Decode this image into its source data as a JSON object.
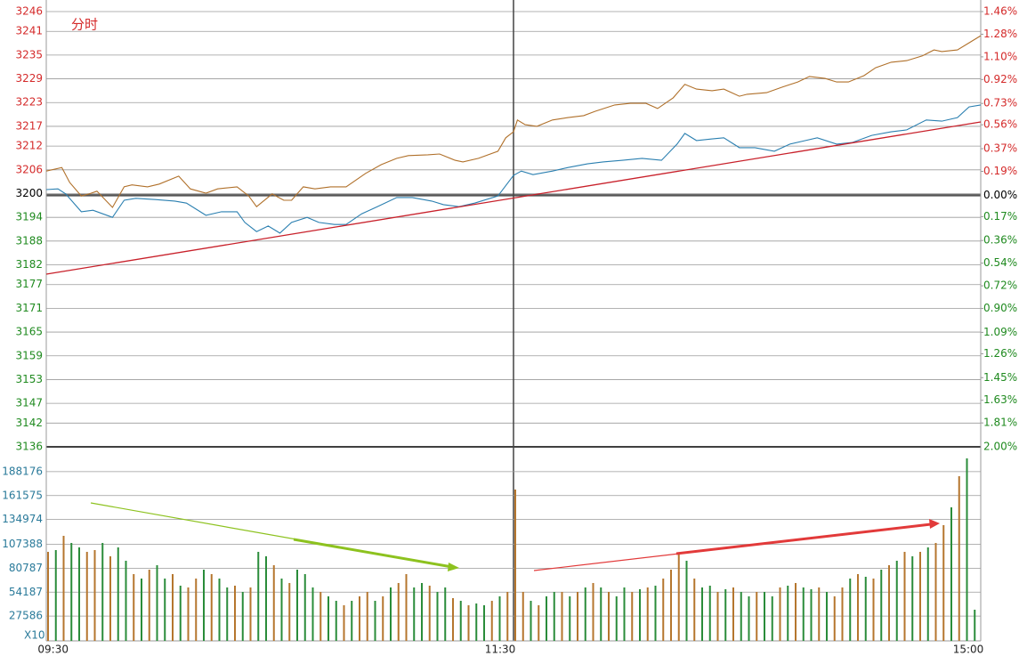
{
  "chart_data": [
    {
      "type": "line",
      "title": "分时",
      "xlim": [
        0,
        240
      ],
      "xticks": [
        {
          "value": 0,
          "label": "09:30"
        },
        {
          "value": 120,
          "label": "11:30"
        },
        {
          "value": 240,
          "label": "15:00"
        }
      ],
      "ylim": [
        3136,
        3246
      ],
      "yticks": [
        3246,
        3241,
        3235,
        3229,
        3223,
        3217,
        3212,
        3206,
        3200,
        3194,
        3188,
        3182,
        3177,
        3171,
        3165,
        3159,
        3153,
        3147,
        3142,
        3136
      ],
      "y2lim": [
        -2.0,
        1.46
      ],
      "y2ticks": [
        {
          "value": 1.46,
          "label": "1.46%"
        },
        {
          "value": 1.28,
          "label": "1.28%"
        },
        {
          "value": 1.1,
          "label": "1.10%"
        },
        {
          "value": 0.92,
          "label": "0.92%"
        },
        {
          "value": 0.73,
          "label": "0.73%"
        },
        {
          "value": 0.56,
          "label": "0.56%"
        },
        {
          "value": 0.37,
          "label": "0.37%"
        },
        {
          "value": 0.19,
          "label": "0.19%"
        },
        {
          "value": 0,
          "label": "0.00%"
        },
        {
          "value": -0.17,
          "label": "0.17%"
        },
        {
          "value": -0.36,
          "label": "0.36%"
        },
        {
          "value": -0.54,
          "label": "0.54%"
        },
        {
          "value": -0.72,
          "label": "0.72%"
        },
        {
          "value": -0.9,
          "label": "0.90%"
        },
        {
          "value": -1.09,
          "label": "1.09%"
        },
        {
          "value": -1.26,
          "label": "1.26%"
        },
        {
          "value": -1.45,
          "label": "1.45%"
        },
        {
          "value": -1.63,
          "label": "1.63%"
        },
        {
          "value": -1.81,
          "label": "1.81%"
        },
        {
          "value": -2.0,
          "label": "2.00%"
        }
      ],
      "up_color": "#d42a2a",
      "down_color": "#1f8a1f",
      "flat_color": "#000000",
      "series": [
        {
          "color": "#b0702a",
          "x": [
            0,
            4,
            6,
            9,
            11,
            13,
            17,
            20,
            22,
            26,
            29,
            34,
            37,
            41,
            44,
            49,
            52,
            54,
            58,
            61,
            63,
            66,
            69,
            73,
            77,
            82,
            86,
            90,
            93,
            98,
            101,
            105,
            107,
            111,
            116,
            118,
            120,
            121,
            123,
            126,
            130,
            134,
            138,
            141,
            146,
            150,
            154,
            157,
            161,
            164,
            167,
            171,
            174,
            178,
            180,
            185,
            189,
            193,
            196,
            200,
            203,
            206,
            210,
            213,
            217,
            221,
            225,
            228,
            230,
            234,
            237,
            240
          ],
          "values": [
            3205.7,
            3206.6,
            3202.8,
            3199.4,
            3199.9,
            3200.6,
            3196.5,
            3201.7,
            3202.2,
            3201.7,
            3202.4,
            3204.4,
            3201.2,
            3200.1,
            3201.2,
            3201.7,
            3199.4,
            3196.7,
            3199.9,
            3198.3,
            3198.3,
            3201.7,
            3201.2,
            3201.7,
            3201.7,
            3205.1,
            3207.3,
            3208.9,
            3209.6,
            3209.8,
            3210.0,
            3208.4,
            3208.0,
            3208.9,
            3210.7,
            3214.1,
            3215.6,
            3218.6,
            3217.4,
            3217.0,
            3218.6,
            3219.2,
            3219.7,
            3220.8,
            3222.4,
            3222.8,
            3222.8,
            3221.5,
            3224.2,
            3227.6,
            3226.4,
            3226.0,
            3226.4,
            3224.6,
            3225.1,
            3225.5,
            3226.9,
            3228.2,
            3229.6,
            3229.1,
            3228.2,
            3228.2,
            3229.8,
            3231.8,
            3233.2,
            3233.6,
            3234.8,
            3236.3,
            3235.9,
            3236.3,
            3238.1,
            3239.9
          ]
        },
        {
          "color": "#2a7fb0",
          "x": [
            0,
            3,
            5,
            9,
            12,
            17,
            20,
            23,
            28,
            33,
            36,
            41,
            45,
            49,
            51,
            54,
            57,
            60,
            63,
            67,
            70,
            74,
            77,
            81,
            85,
            90,
            94,
            99,
            102,
            106,
            110,
            116,
            120,
            122,
            125,
            130,
            134,
            139,
            143,
            148,
            153,
            158,
            162,
            164,
            167,
            171,
            174,
            178,
            182,
            187,
            191,
            195,
            198,
            203,
            207,
            212,
            217,
            221,
            226,
            230,
            234,
            237,
            240
          ],
          "values": [
            3201.0,
            3201.2,
            3199.9,
            3195.4,
            3195.8,
            3194.0,
            3198.3,
            3198.8,
            3198.5,
            3198.1,
            3197.6,
            3194.5,
            3195.4,
            3195.4,
            3192.7,
            3190.4,
            3191.8,
            3190.0,
            3192.7,
            3194.0,
            3192.7,
            3192.2,
            3192.2,
            3194.9,
            3196.7,
            3199.0,
            3199.0,
            3198.1,
            3197.2,
            3196.7,
            3197.6,
            3199.4,
            3204.6,
            3205.7,
            3204.8,
            3205.7,
            3206.6,
            3207.5,
            3208.0,
            3208.4,
            3208.9,
            3208.4,
            3212.5,
            3215.2,
            3213.4,
            3213.8,
            3214.1,
            3211.6,
            3211.6,
            3210.7,
            3212.5,
            3213.4,
            3214.1,
            3212.5,
            3212.9,
            3214.7,
            3215.6,
            3216.1,
            3218.6,
            3218.3,
            3219.2,
            3221.9,
            3222.4
          ]
        }
      ]
    },
    {
      "type": "bar",
      "xlim": [
        0,
        240
      ],
      "ylim": [
        0,
        215800
      ],
      "yticks": [
        188176,
        161575,
        134974,
        107388,
        80787,
        54187,
        27586
      ],
      "unit_label": "X10",
      "x": [
        0,
        2,
        4,
        6,
        8,
        10,
        12,
        14,
        16,
        18,
        20,
        22,
        24,
        26,
        28,
        30,
        32,
        34,
        36,
        38,
        40,
        42,
        44,
        46,
        48,
        50,
        52,
        54,
        56,
        58,
        60,
        62,
        64,
        66,
        68,
        70,
        72,
        74,
        76,
        78,
        80,
        82,
        84,
        86,
        88,
        90,
        92,
        94,
        96,
        98,
        100,
        102,
        104,
        106,
        108,
        110,
        112,
        114,
        116,
        118,
        120,
        122,
        124,
        126,
        128,
        130,
        132,
        134,
        136,
        138,
        140,
        142,
        144,
        146,
        148,
        150,
        152,
        154,
        156,
        158,
        160,
        162,
        164,
        166,
        168,
        170,
        172,
        174,
        176,
        178,
        180,
        182,
        184,
        186,
        188,
        190,
        192,
        194,
        196,
        198,
        200,
        202,
        204,
        206,
        208,
        210,
        212,
        214,
        216,
        218,
        220,
        222,
        224,
        226,
        228,
        230,
        232,
        234,
        236,
        238
      ],
      "values": [
        99000,
        100980,
        116820,
        108900,
        103950,
        99000,
        100980,
        108900,
        94050,
        103950,
        89100,
        74250,
        69300,
        79200,
        84150,
        69300,
        74250,
        61380,
        59400,
        69300,
        79200,
        74250,
        69300,
        59400,
        61380,
        54450,
        59400,
        99000,
        94050,
        84150,
        69300,
        64350,
        79200,
        74250,
        59400,
        54450,
        49500,
        44550,
        39600,
        44550,
        49500,
        54450,
        44550,
        49500,
        59400,
        64350,
        74250,
        59400,
        64350,
        61380,
        54450,
        59400,
        47520,
        44550,
        39600,
        41580,
        39600,
        44550,
        49500,
        54450,
        168300,
        54450,
        44550,
        39600,
        49500,
        54450,
        54450,
        49500,
        54450,
        59400,
        64350,
        59400,
        54450,
        49500,
        59400,
        54450,
        57420,
        59400,
        61380,
        69300,
        79200,
        97020,
        89100,
        69300,
        59400,
        61380,
        54450,
        57420,
        59400,
        54450,
        49500,
        54450,
        54450,
        49500,
        59400,
        61380,
        64350,
        59400,
        57420,
        59400,
        54450,
        49500,
        59400,
        69300,
        74250,
        71280,
        69300,
        79200,
        84150,
        89100,
        99000,
        94050,
        99000,
        103950,
        108900,
        128700,
        148500,
        183150,
        202950,
        34650
      ],
      "colors": [
        "#b5762e",
        "#2a8c3a",
        "#b5762e",
        "#2a8c3a",
        "#2a8c3a",
        "#b5762e",
        "#b5762e",
        "#2a8c3a",
        "#b5762e",
        "#2a8c3a",
        "#2a8c3a",
        "#b5762e",
        "#2a8c3a",
        "#b5762e",
        "#2a8c3a",
        "#2a8c3a",
        "#b5762e",
        "#2a8c3a",
        "#b5762e",
        "#b5762e",
        "#2a8c3a",
        "#b5762e",
        "#2a8c3a",
        "#2a8c3a",
        "#b5762e",
        "#2a8c3a",
        "#b5762e",
        "#2a8c3a",
        "#2a8c3a",
        "#b5762e",
        "#2a8c3a",
        "#b5762e",
        "#2a8c3a",
        "#2a8c3a",
        "#2a8c3a",
        "#b5762e",
        "#2a8c3a",
        "#2a8c3a",
        "#b5762e",
        "#2a8c3a",
        "#b5762e",
        "#b5762e",
        "#2a8c3a",
        "#b5762e",
        "#2a8c3a",
        "#b5762e",
        "#b5762e",
        "#2a8c3a",
        "#2a8c3a",
        "#b5762e",
        "#2a8c3a",
        "#2a8c3a",
        "#b5762e",
        "#2a8c3a",
        "#b5762e",
        "#2a8c3a",
        "#2a8c3a",
        "#b5762e",
        "#2a8c3a",
        "#b5762e",
        "#b5762e",
        "#b5762e",
        "#2a8c3a",
        "#b5762e",
        "#2a8c3a",
        "#2a8c3a",
        "#b5762e",
        "#2a8c3a",
        "#b5762e",
        "#2a8c3a",
        "#b5762e",
        "#2a8c3a",
        "#b5762e",
        "#2a8c3a",
        "#2a8c3a",
        "#b5762e",
        "#2a8c3a",
        "#b5762e",
        "#2a8c3a",
        "#b5762e",
        "#b5762e",
        "#b5762e",
        "#2a8c3a",
        "#b5762e",
        "#2a8c3a",
        "#2a8c3a",
        "#b5762e",
        "#2a8c3a",
        "#b5762e",
        "#2a8c3a",
        "#2a8c3a",
        "#b5762e",
        "#2a8c3a",
        "#2a8c3a",
        "#b5762e",
        "#2a8c3a",
        "#b5762e",
        "#2a8c3a",
        "#2a8c3a",
        "#b5762e",
        "#2a8c3a",
        "#b5762e",
        "#b5762e",
        "#2a8c3a",
        "#b5762e",
        "#2a8c3a",
        "#b5762e",
        "#2a8c3a",
        "#b5762e",
        "#2a8c3a",
        "#b5762e",
        "#2a8c3a",
        "#b5762e",
        "#2a8c3a",
        "#b5762e",
        "#b5762e",
        "#2a8c3a",
        "#b5762e",
        "#2a8c3a",
        "#2a8c3a"
      ]
    }
  ]
}
